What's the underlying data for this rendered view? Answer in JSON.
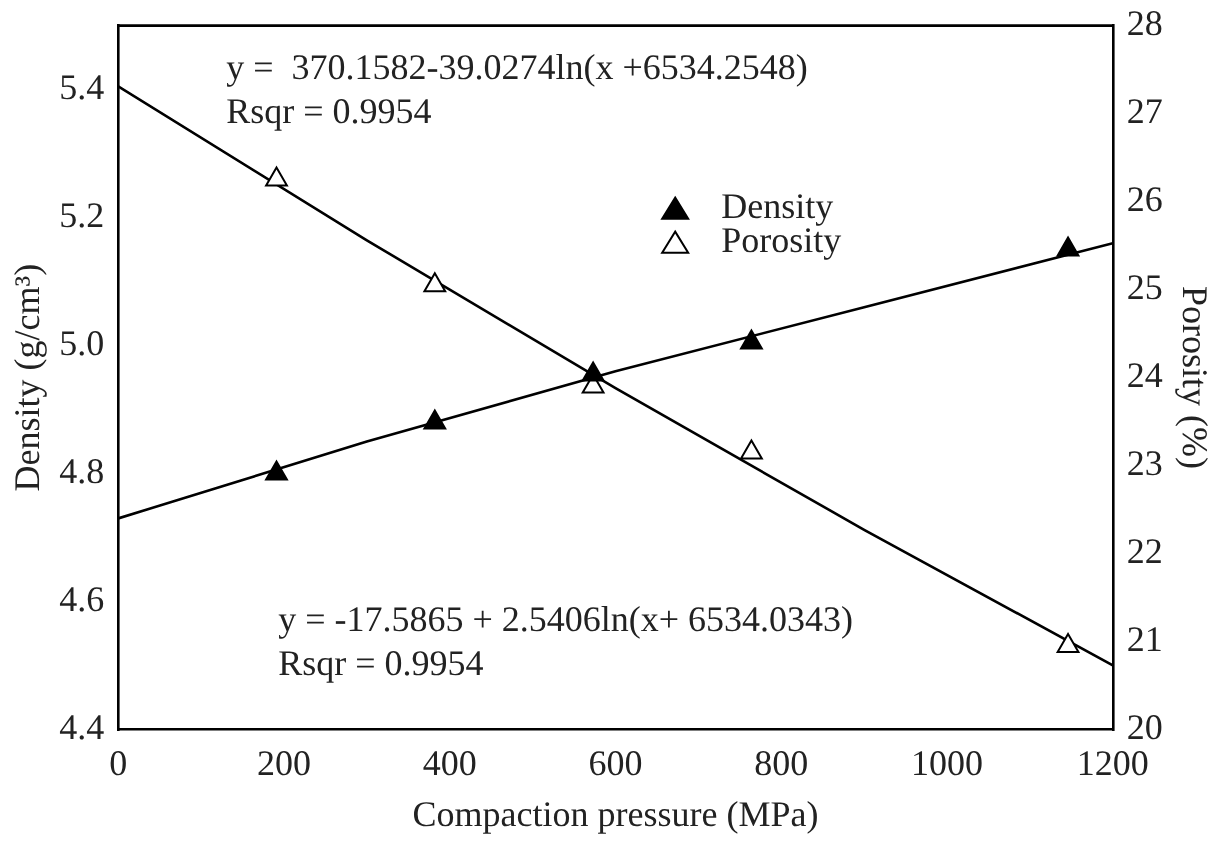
{
  "chart_data": {
    "type": "scatter",
    "xlabel": "Compaction pressure (MPa)",
    "ylabel": "Density (g/cm³)",
    "y2label": "Porosity (%)",
    "xlim": [
      0,
      1200
    ],
    "xticks": [
      0,
      200,
      400,
      600,
      800,
      1000,
      1200
    ],
    "ylim": [
      4.4,
      5.5
    ],
    "yticks": [
      4.4,
      4.6,
      4.8,
      {
        "value": 5,
        "label": "5.0"
      },
      5.2,
      5.4
    ],
    "y2lim": [
      20,
      28
    ],
    "y2ticks": [
      20,
      21,
      22,
      23,
      24,
      25,
      26,
      27,
      28
    ],
    "grid": false,
    "legend": "top right",
    "marker": "triangle",
    "series": [
      {
        "name": "Density",
        "color": "#000000",
        "x": [
          191,
          382,
          573,
          764,
          1146
        ],
        "values": [
          4.8,
          4.88,
          4.955,
          5.005,
          5.15
        ]
      },
      {
        "name": "Porosity",
        "color": "#000000",
        "axis": "y2",
        "x": [
          191,
          382,
          573,
          764,
          1146
        ],
        "values": [
          26.25,
          25.05,
          23.9,
          23.15,
          20.95
        ]
      },
      {
        "type": "line",
        "color": "#000000",
        "marker": "none",
        "x": [
          0,
          300,
          600,
          900,
          1200
        ],
        "values": [
          4.73,
          4.85,
          4.96,
          5.06,
          5.16
        ]
      },
      {
        "type": "line",
        "color": "#000000",
        "marker": "none",
        "axis": "y2",
        "x": [
          0,
          300,
          600,
          900,
          1200
        ],
        "values": [
          27.31,
          25.56,
          23.88,
          22.27,
          20.73
        ]
      }
    ],
    "annotations": [
      "y =  370.1582-39.0274ln(x +6534.2548)",
      "Rsqr = 0.9954",
      "y = -17.5865 + 2.5406ln(x+ 6534.0343)",
      "Rsqr = 0.9954"
    ]
  }
}
